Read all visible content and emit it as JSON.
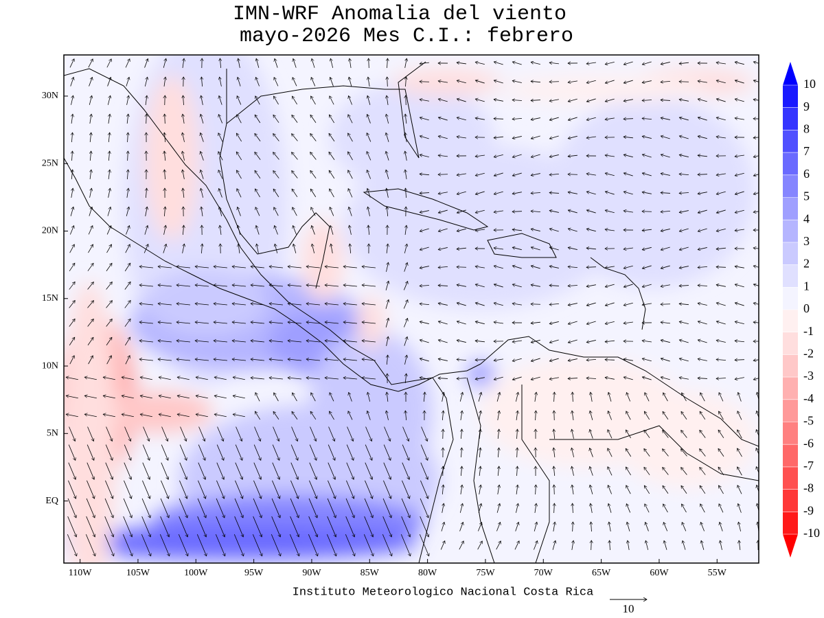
{
  "header": {
    "title": "IMN-WRF Anomalia del viento",
    "subtitle": "mayo-2026 Mes C.I.: febrero"
  },
  "map": {
    "lonlim": [
      -111.4,
      -51.4
    ],
    "latlim": [
      -4.6,
      33.05
    ],
    "lonticks": [
      {
        "value": -110,
        "label": "110W"
      },
      {
        "value": -105,
        "label": "105W"
      },
      {
        "value": -100,
        "label": "100W"
      },
      {
        "value": -95,
        "label": "95W"
      },
      {
        "value": -90,
        "label": "90W"
      },
      {
        "value": -85,
        "label": "85W"
      },
      {
        "value": -80,
        "label": "80W"
      },
      {
        "value": -75,
        "label": "75W"
      },
      {
        "value": -70,
        "label": "70W"
      },
      {
        "value": -65,
        "label": "65W"
      },
      {
        "value": -60,
        "label": "60W"
      },
      {
        "value": -55,
        "label": "55W"
      }
    ],
    "latticks": [
      {
        "value": 30,
        "label": "30N"
      },
      {
        "value": 25,
        "label": "25N"
      },
      {
        "value": 20,
        "label": "20N"
      },
      {
        "value": 15,
        "label": "15N"
      },
      {
        "value": 10,
        "label": "10N"
      },
      {
        "value": 5,
        "label": "5N"
      },
      {
        "value": 0,
        "label": "EQ"
      }
    ]
  },
  "colorbar": {
    "levels": [
      10,
      9,
      8,
      7,
      6,
      5,
      4,
      3,
      2,
      1,
      0,
      -1,
      -2,
      -3,
      -4,
      -5,
      -6,
      -7,
      -8,
      -9,
      -10
    ],
    "colors": [
      "#0000ff",
      "#1a1aff",
      "#3535ff",
      "#5050ff",
      "#6a6aff",
      "#8585ff",
      "#9f9fff",
      "#b5b5ff",
      "#cacaff",
      "#e0e0ff",
      "#f4f4ff",
      "#fff0f0",
      "#ffdede",
      "#ffc8c8",
      "#ffb0b0",
      "#ff9999",
      "#ff8080",
      "#ff6868",
      "#ff5050",
      "#ff3838",
      "#ff1a1a",
      "#ff0000"
    ]
  },
  "footer": "Instituto Meteorologico Nacional Costa Rica",
  "reference_vector": "10"
}
